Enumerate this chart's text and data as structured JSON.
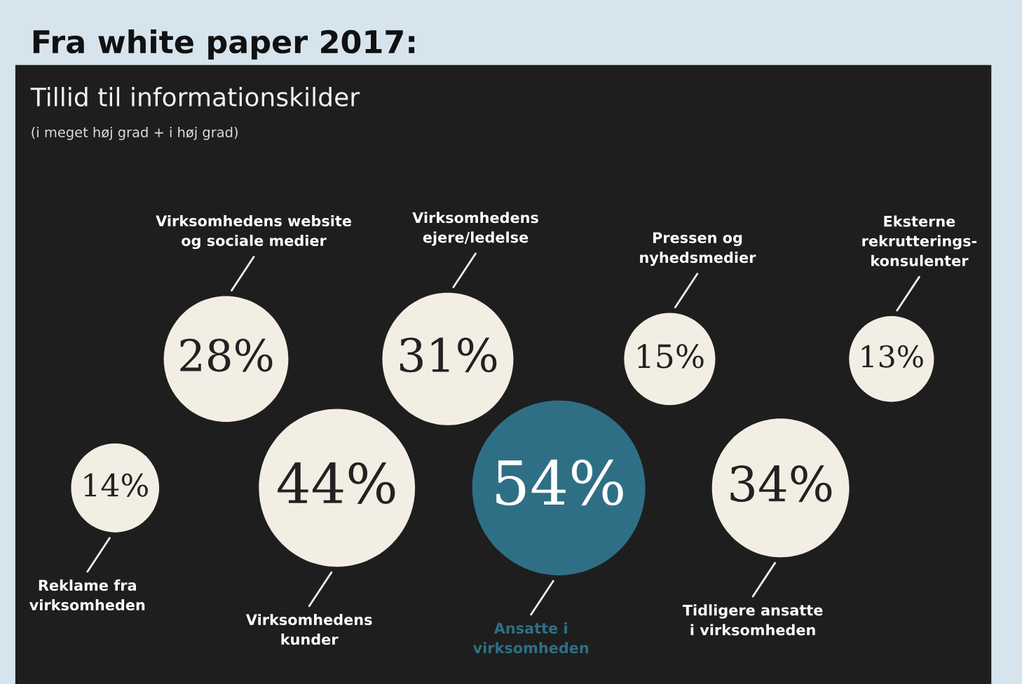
{
  "chart_data": {
    "type": "other",
    "title": "Tillid til informationskilder",
    "subtitle": "(i meget høj grad + i høj grad)",
    "annotations": [
      "Fra white paper 2017:"
    ],
    "categories": [
      "Reklame fra\nvirksomheden",
      "Virksomhedens website\nog sociale medier",
      "Virksomhedens\nkunder",
      "Virksomhedens\nejere/ledelse",
      "Ansatte i\nvirksomheden",
      "Pressen og\nnyhedsmedier",
      "Tidligere ansatte\ni virksomheden",
      "Eksterne\nrekrutterings-\nkonsulenter"
    ],
    "values": [
      14,
      28,
      44,
      31,
      54,
      15,
      34,
      13
    ],
    "value_labels": [
      "14%",
      "28%",
      "44%",
      "31%",
      "54%",
      "15%",
      "34%",
      "13%"
    ],
    "colors": [
      "#f2eee4",
      "#f2eee4",
      "#f2eee4",
      "#f2eee4",
      "#2f6f86",
      "#f2eee4",
      "#f2eee4",
      "#f2eee4"
    ]
  }
}
